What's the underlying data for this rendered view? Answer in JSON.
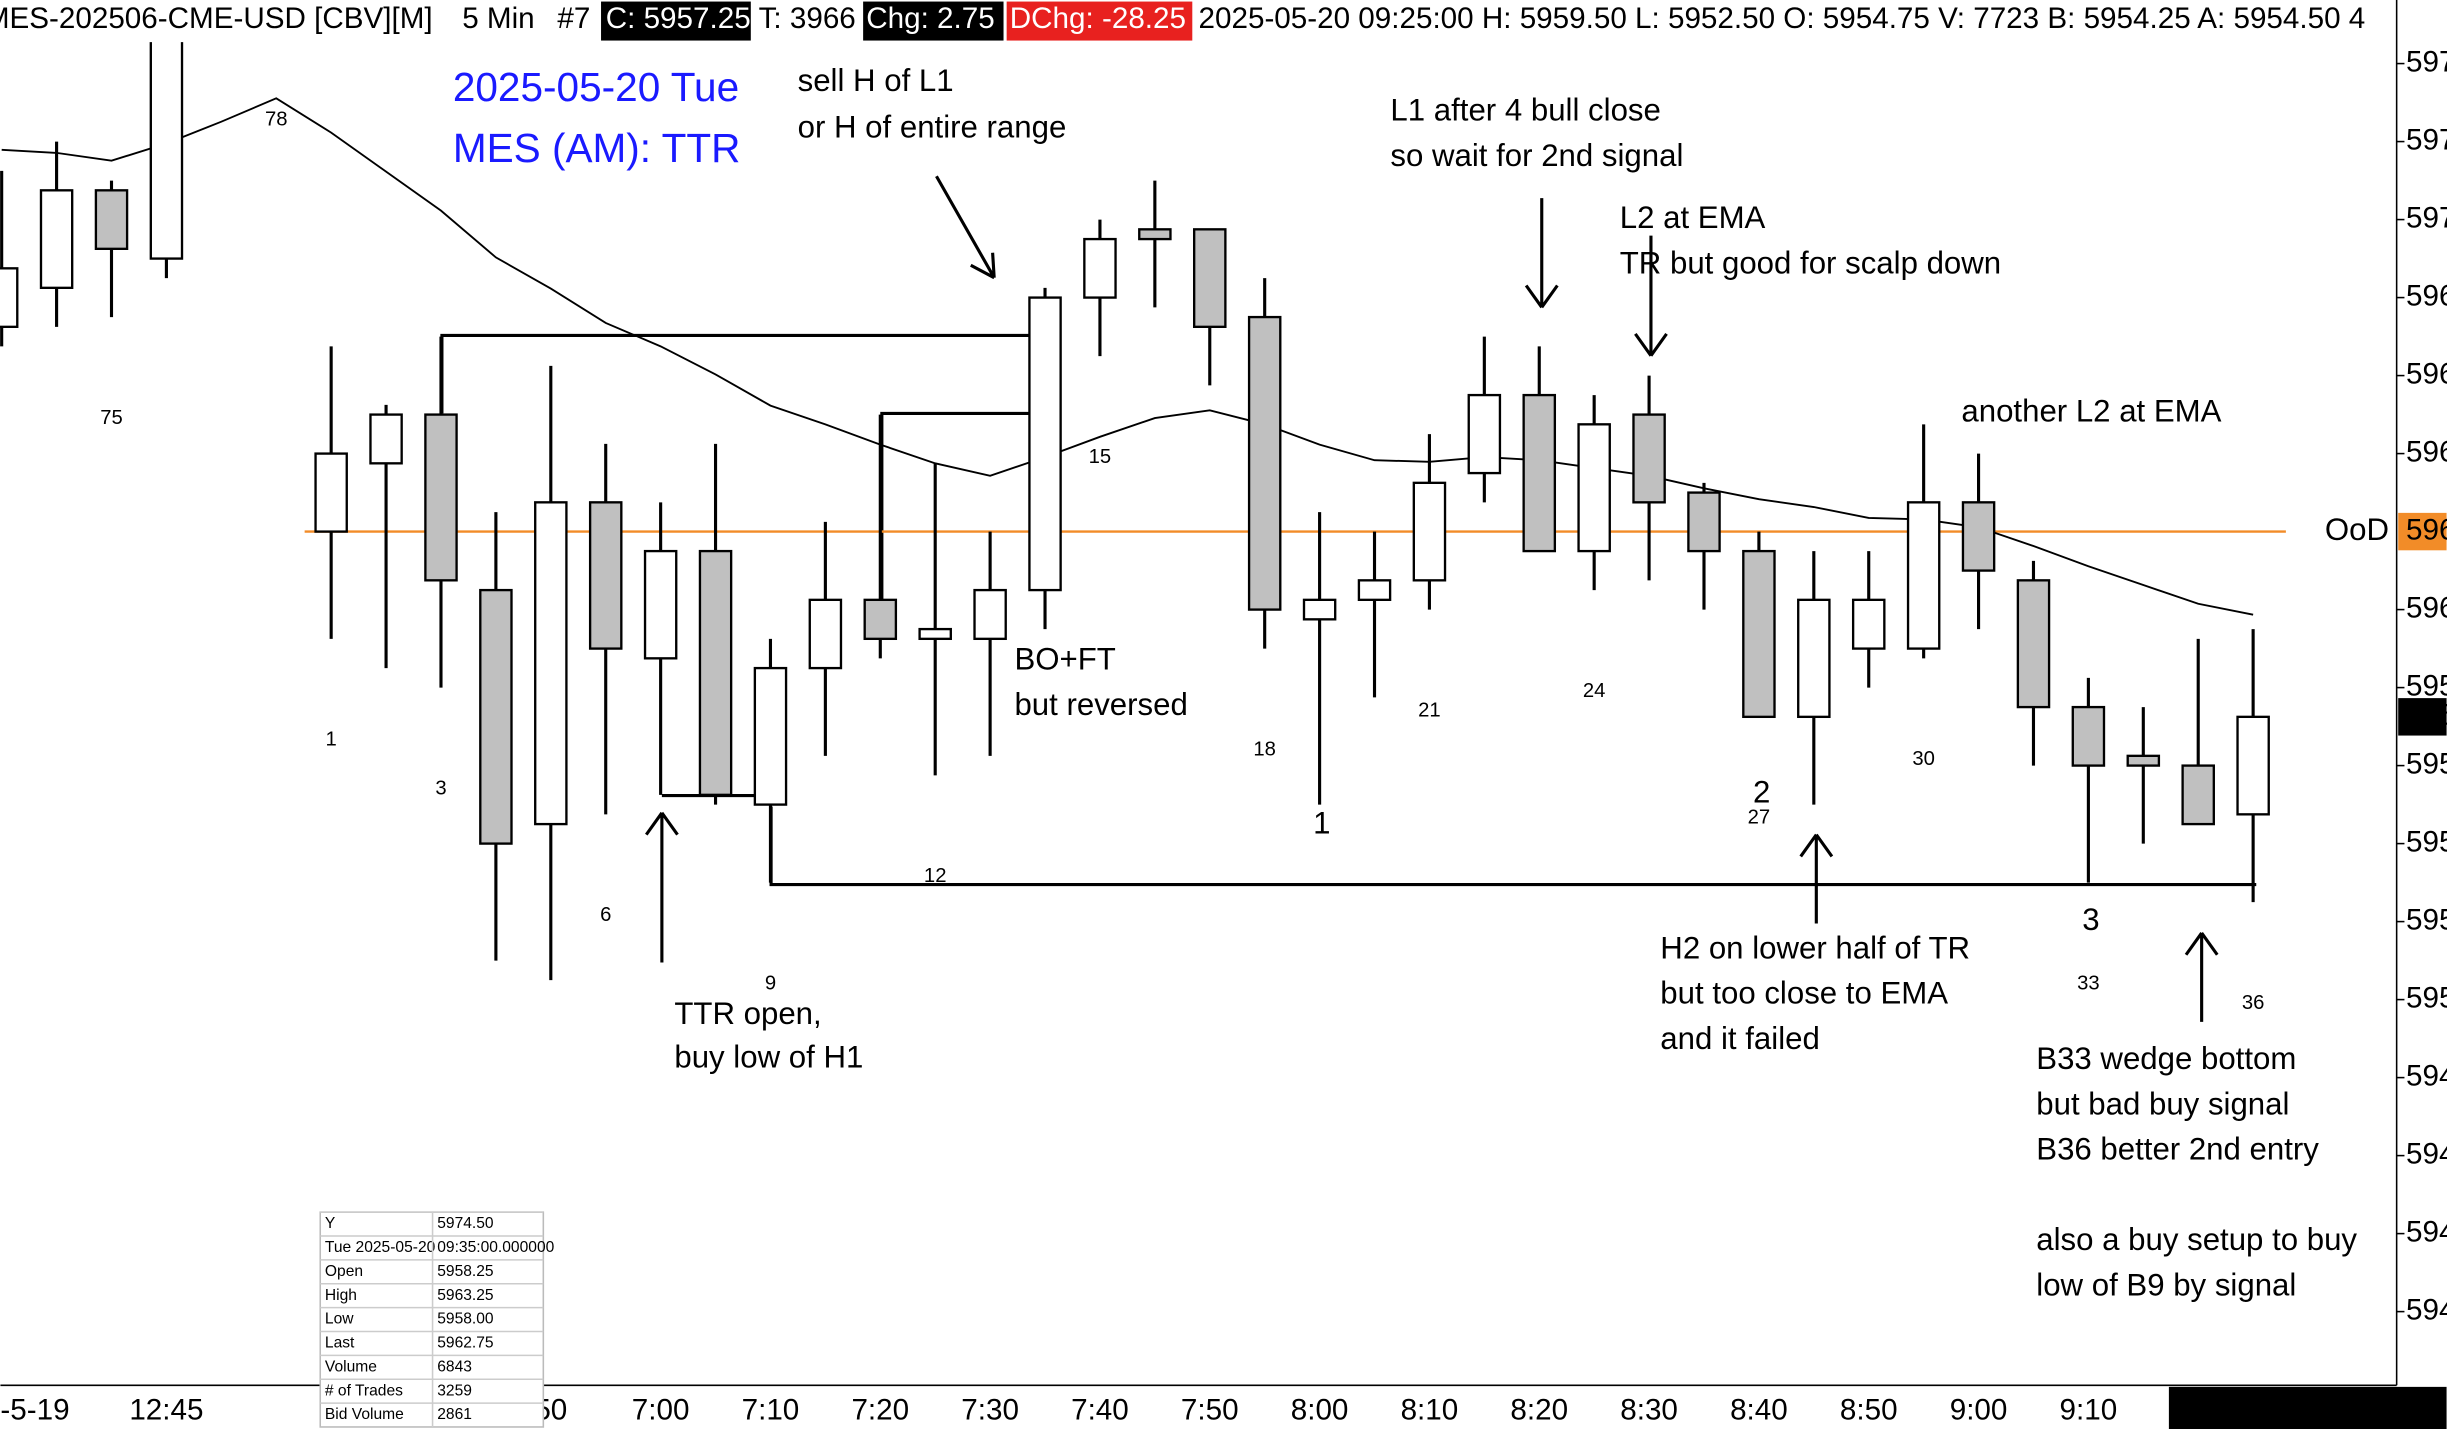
{
  "header": {
    "symbol": "MES-202506-CME-USD [CBV][M]",
    "interval": "5 Min",
    "bar": "#7",
    "close": "C: 5957.25",
    "ticks": "T: 3966",
    "change": "Chg: 2.75",
    "day_change": "DChg: -28.25",
    "info": "2025-05-20 09:25:00 H: 5959.50 L: 5952.50 O: 5954.75 V: 7723 B: 5954.25 A: 5954.50 4"
  },
  "chart_data": {
    "type": "candlestick",
    "categories": [
      "-5-19",
      null,
      null,
      "12:45",
      null,
      null,
      null,
      null,
      null,
      null,
      "50",
      null,
      "7:00",
      null,
      "7:10",
      null,
      "7:20",
      null,
      "7:30",
      null,
      "7:40",
      null,
      "7:50",
      null,
      "8:00",
      null,
      "8:10",
      null,
      "8:20",
      null,
      "8:30",
      null,
      "8:40",
      null,
      "8:50",
      null,
      "9:00",
      null,
      "9:10",
      null,
      null,
      null
    ],
    "open": [
      5967.25,
      5968.25,
      5970.75,
      5969.0,
      null,
      null,
      5962,
      5963.75,
      5965,
      5960.5,
      5954.5,
      5962.75,
      5958.75,
      5961.5,
      5955,
      5958.5,
      5960.25,
      5959.25,
      5959.25,
      5960.5,
      5968,
      5969.75,
      5969.75,
      5967.5,
      5959.75,
      5960.25,
      5960.75,
      5963.5,
      5965.5,
      5961.5,
      5965,
      5963,
      5961.5,
      5957.25,
      5959,
      5959,
      5962.75,
      5960.75,
      5957.5,
      5956.25,
      5956,
      5954.75
    ],
    "high": [
      5971.25,
      5972,
      5971,
      5975.5,
      null,
      null,
      5966.75,
      5965.25,
      5967,
      5962.5,
      5966.25,
      5964.25,
      5962.75,
      5964.25,
      5959.25,
      5962.25,
      5965,
      5963.75,
      5962,
      5968.25,
      5970,
      5971,
      5969.75,
      5968.5,
      5962.5,
      5962,
      5964.5,
      5967,
      5966.75,
      5965.5,
      5966,
      5963.25,
      5962,
      5961.5,
      5961.5,
      5964.75,
      5964,
      5961.25,
      5958.25,
      5957.5,
      5959.25,
      5959.5
    ],
    "low": [
      5966.75,
      5967.25,
      5967.5,
      5968.5,
      null,
      null,
      5959.25,
      5958.5,
      5958,
      5951,
      5950.5,
      5954.75,
      5955.25,
      5955,
      5953,
      5956.25,
      5958.75,
      5955.75,
      5956.25,
      5959.5,
      5966.5,
      5967.75,
      5965.75,
      5959,
      5955,
      5957.75,
      5960,
      5962.75,
      5961.5,
      5960.5,
      5960.75,
      5960,
      5957.25,
      5955,
      5958,
      5958.75,
      5959.5,
      5956,
      5953,
      5954,
      5954.5,
      5952.5
    ],
    "close": [
      5968.75,
      5970.75,
      5969.25,
      5974.75,
      null,
      null,
      5964,
      5965,
      5960.75,
      5954,
      5962.75,
      5959,
      5961.5,
      5955.25,
      5958.5,
      5960.25,
      5959.25,
      5959.5,
      5960.5,
      5968,
      5969.5,
      5969.5,
      5967.25,
      5960,
      5960.25,
      5960.75,
      5963.25,
      5965.5,
      5961.5,
      5964.75,
      5962.75,
      5961.5,
      5957.25,
      5960.25,
      5960.25,
      5962.75,
      5961,
      5957.5,
      5956,
      5956,
      5954.5,
      5957.25
    ],
    "ema_values": [
      5971.79,
      5971.71,
      5971.51,
      5971.95,
      5972.51,
      5973.11,
      5972.23,
      5971.23,
      5970.23,
      5969.03,
      5968.23,
      5967.35,
      5966.75,
      5966.03,
      5965.23,
      5964.75,
      5964.23,
      5963.75,
      5963.43,
      5963.91,
      5964.43,
      5964.91,
      5965.11,
      5964.75,
      5964.23,
      5963.83,
      5963.79,
      5963.91,
      5963.83,
      5963.63,
      5963.43,
      5963.11,
      5962.83,
      5962.63,
      5962.35,
      5962.31,
      5962.11,
      5961.63,
      5961.11,
      5960.63,
      5960.15,
      5959.87
    ],
    "bar_labels": [
      null,
      null,
      "75",
      null,
      null,
      "78",
      "1",
      null,
      "3",
      null,
      null,
      "6",
      null,
      null,
      "9",
      null,
      null,
      "12",
      null,
      null,
      "15",
      null,
      null,
      "18",
      null,
      null,
      "21",
      null,
      null,
      "24",
      null,
      null,
      "27",
      null,
      null,
      "30",
      null,
      null,
      "33",
      null,
      null,
      "36"
    ],
    "up_color": "#ffffff",
    "down_color": "#c0c0c0",
    "ema_color": "#000000",
    "ylim": [
      5940.11,
      5975.63
    ],
    "yticks": [
      {
        "value": 5974,
        "label": "597"
      },
      {
        "value": 5972,
        "label": "597"
      },
      {
        "value": 5970,
        "label": "597"
      },
      {
        "value": 5968,
        "label": "596"
      },
      {
        "value": 5966,
        "label": "596"
      },
      {
        "value": 5964,
        "label": "596"
      },
      {
        "value": 5960,
        "label": "596"
      },
      {
        "value": 5958,
        "label": "595"
      },
      {
        "value": 5956,
        "label": "595"
      },
      {
        "value": 5954,
        "label": "595"
      },
      {
        "value": 5952,
        "label": "595"
      },
      {
        "value": 5950,
        "label": "595"
      },
      {
        "value": 5948,
        "label": "594"
      },
      {
        "value": 5946,
        "label": "594"
      },
      {
        "value": 5944,
        "label": "594"
      },
      {
        "value": 5942,
        "label": "594"
      }
    ],
    "ood": {
      "value": 5962,
      "label": "OoD",
      "tag": "596",
      "color": "#f28c28"
    },
    "last_price": {
      "value": 5957.25,
      "label": "595"
    },
    "cursor_time": "Tue 2025-05-20  0"
  },
  "annotations": [
    [
      "2025-05-20 Tue",
      "MES (AM): TTR"
    ],
    [
      "sell H of L1",
      "or H of entire range"
    ],
    [
      "L1 after 4 bull close",
      "so wait for 2nd signal"
    ],
    [
      "L2 at EMA",
      "TR but good for scalp down"
    ],
    [
      "another L2 at EMA"
    ],
    [
      "BO+FT",
      "but reversed"
    ],
    [
      "TTR open,",
      "buy low of H1"
    ],
    [
      "H2 on lower half of TR",
      "but too close to EMA",
      "and it failed"
    ],
    [
      "B33 wedge bottom",
      "but bad buy signal",
      "B36 better 2nd entry"
    ],
    [
      "also a buy setup to buy",
      "low of B9 by signal"
    ],
    [
      "1"
    ],
    [
      "2"
    ],
    [
      "3"
    ]
  ],
  "data_window": [
    [
      "Y",
      "5974.50"
    ],
    [
      "Tue 2025-05-20",
      "09:35:00.000000"
    ],
    [
      "Open",
      "5958.25"
    ],
    [
      "High",
      "5963.25"
    ],
    [
      "Low",
      "5958.00"
    ],
    [
      "Last",
      "5962.75"
    ],
    [
      "Volume",
      "6843"
    ],
    [
      "# of Trades",
      "3259"
    ],
    [
      "Bid Volume",
      "2861"
    ]
  ]
}
